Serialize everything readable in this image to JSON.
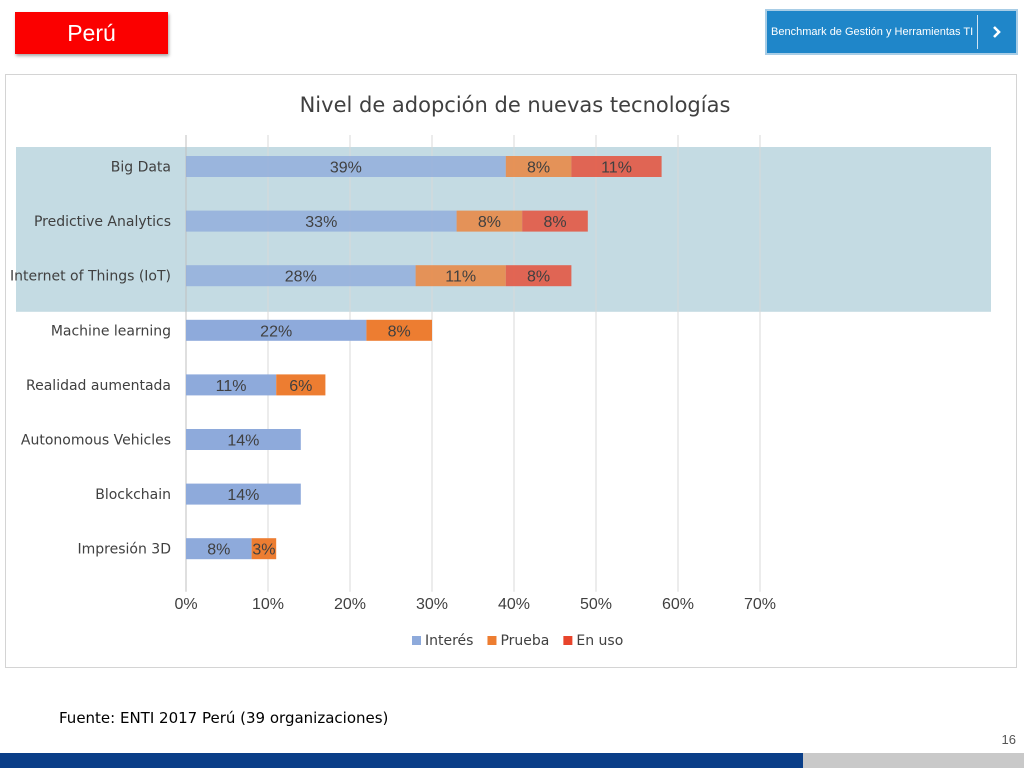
{
  "header": {
    "country": "Perú",
    "benchmark_label": "Benchmark de Gestión y Herramientas TI"
  },
  "chart_data": {
    "type": "bar",
    "orientation": "horizontal",
    "stacked": true,
    "title": "Nivel de adopción de nuevas tecnologías",
    "xlabel": "",
    "ylabel": "",
    "categories": [
      "Big Data",
      "Predictive Analytics",
      "Internet of Things (IoT)",
      "Machine learning",
      "Realidad aumentada",
      "Autonomous Vehicles",
      "Blockchain",
      "Impresión 3D"
    ],
    "series": [
      {
        "name": "Interés",
        "values": [
          39,
          33,
          28,
          22,
          11,
          14,
          14,
          8
        ],
        "labels": [
          "39%",
          "33%",
          "28%",
          "22%",
          "11%",
          "14%",
          "14%",
          "8%"
        ]
      },
      {
        "name": "Prueba",
        "values": [
          8,
          8,
          11,
          8,
          6,
          0,
          0,
          3
        ],
        "labels": [
          "8%",
          "8%",
          "11%",
          "8%",
          "6%",
          "",
          "",
          "3%"
        ]
      },
      {
        "name": "En uso",
        "values": [
          11,
          8,
          8,
          0,
          0,
          0,
          0,
          0
        ],
        "labels": [
          "11%",
          "8%",
          "8%",
          "",
          "",
          "",
          "",
          ""
        ]
      }
    ],
    "xlim": [
      0,
      70
    ],
    "xticks": [
      0,
      10,
      20,
      30,
      40,
      50,
      60,
      70
    ],
    "xtick_labels": [
      "0%",
      "10%",
      "20%",
      "30%",
      "40%",
      "50%",
      "60%",
      "70%"
    ],
    "grid": "vertical",
    "legend": "bottom",
    "highlighted_categories": [
      "Big Data",
      "Predictive Analytics",
      "Internet of Things (IoT)"
    ],
    "colors": {
      "interes": "#8eaadb",
      "prueba": "#ed7d31",
      "en_uso": "#e8442b",
      "highlight_band": "#c4dbe3"
    }
  },
  "footer": {
    "source": "Fuente: ENTI 2017 Perú (39 organizaciones)",
    "page_number": "16"
  }
}
